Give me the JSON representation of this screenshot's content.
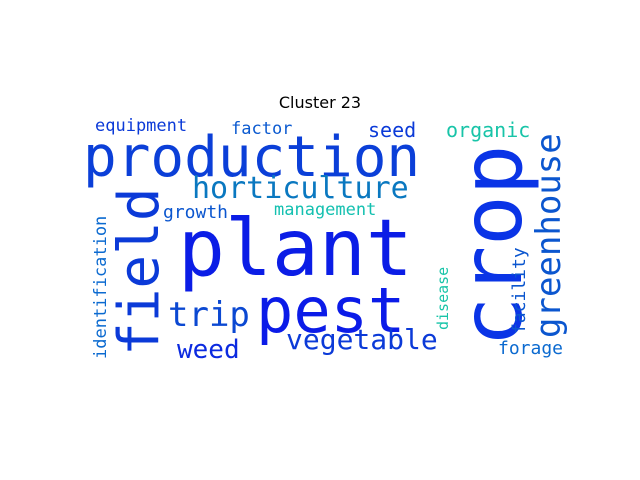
{
  "figure": {
    "title": "Cluster 23"
  },
  "words": [
    {
      "text": "plant",
      "color": "#0b1de6"
    },
    {
      "text": "crop",
      "color": "#0a34e6"
    },
    {
      "text": "production",
      "color": "#0b3fd8"
    },
    {
      "text": "pest",
      "color": "#0b1be8"
    },
    {
      "text": "field",
      "color": "#0b3ad8"
    },
    {
      "text": "horticulture",
      "color": "#0a78c0"
    },
    {
      "text": "greenhouse",
      "color": "#0b56cf"
    },
    {
      "text": "vegetable",
      "color": "#0b3ad8"
    },
    {
      "text": "trip",
      "color": "#0b48d2"
    },
    {
      "text": "weed",
      "color": "#0b2ae0"
    },
    {
      "text": "management",
      "color": "#14c0b0"
    },
    {
      "text": "growth",
      "color": "#0b56cf"
    },
    {
      "text": "seed",
      "color": "#0b3ad8"
    },
    {
      "text": "organic",
      "color": "#18c4a8"
    },
    {
      "text": "factor",
      "color": "#0b5ad0"
    },
    {
      "text": "equipment",
      "color": "#0b3ad8"
    },
    {
      "text": "identification",
      "color": "#0b6ad0"
    },
    {
      "text": "facility",
      "color": "#0b56cf"
    },
    {
      "text": "forage",
      "color": "#0b6ad0"
    },
    {
      "text": "disease",
      "color": "#18c4a8"
    }
  ]
}
